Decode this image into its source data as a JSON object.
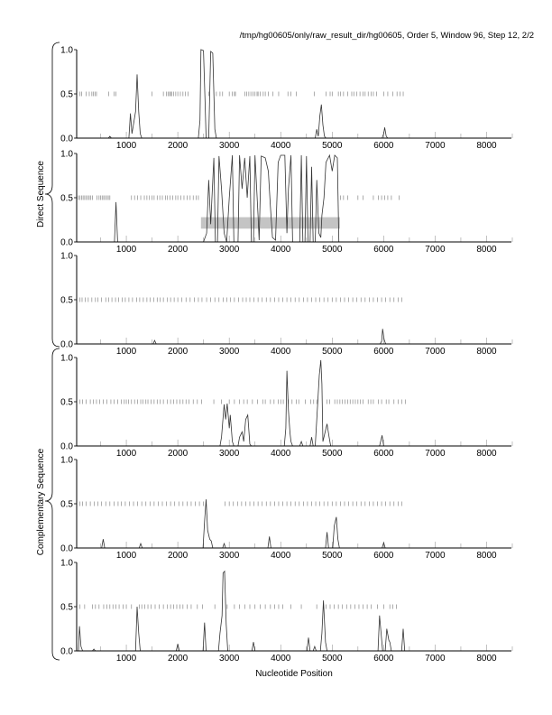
{
  "title": "/tmp/hg00605/only/raw_result_dir/hg00605, Order 5, Window 96, Step 12, 2/2",
  "group_labels": [
    "Direct Sequence",
    "Complementary Sequence"
  ],
  "chart_data": {
    "type": "line",
    "xlabel": "Nucleotide Position",
    "xlim": [
      0,
      8500
    ],
    "ylim": [
      0,
      1
    ],
    "x_ticks": [
      1000,
      2000,
      3000,
      4000,
      5000,
      6000,
      7000,
      8000
    ],
    "y_ticks": [
      "0.0",
      "0.5",
      "1.0"
    ],
    "line_color": "#333333",
    "mark_color": "#888888",
    "box_color": "#c4c4c4",
    "panels": [
      {
        "group": "Direct Sequence",
        "points": [
          [
            680,
            0.02
          ],
          [
            1080,
            0.28
          ],
          [
            1110,
            0.05
          ],
          [
            1180,
            0.3
          ],
          [
            1210,
            0.72
          ],
          [
            1240,
            0.3
          ],
          [
            1270,
            0.05
          ],
          [
            2430,
            0.2
          ],
          [
            2450,
            1.0
          ],
          [
            2500,
            0.99
          ],
          [
            2530,
            0.4
          ],
          [
            2550,
            0.0
          ],
          [
            2600,
            0.0
          ],
          [
            2640,
            0.98
          ],
          [
            2680,
            0.96
          ],
          [
            2720,
            0.1
          ],
          [
            4700,
            0.1
          ],
          [
            4730,
            0.02
          ],
          [
            4760,
            0.25
          ],
          [
            4790,
            0.38
          ],
          [
            4820,
            0.15
          ],
          [
            4850,
            0.02
          ],
          [
            6000,
            0.05
          ],
          [
            6020,
            0.12
          ],
          [
            6050,
            0.02
          ]
        ],
        "marks": [
          100,
          130,
          220,
          280,
          330,
          360,
          390,
          420,
          660,
          760,
          800,
          1500,
          1720,
          1780,
          1810,
          1840,
          1860,
          1880,
          1920,
          1960,
          2000,
          2050,
          2100,
          2150,
          2200,
          2600,
          2750,
          2820,
          2870,
          3000,
          3060,
          3100,
          3120,
          3300,
          3340,
          3380,
          3420,
          3460,
          3500,
          3540,
          3560,
          3600,
          3660,
          3700,
          3760,
          3850,
          3960,
          4140,
          4200,
          4300,
          4650,
          4880,
          4960,
          5000,
          5120,
          5160,
          5220,
          5300,
          5380,
          5420,
          5480,
          5540,
          5600,
          5640,
          5700,
          5760,
          5800,
          5860,
          6000,
          6080,
          6180,
          6260,
          6320,
          6380
        ]
      },
      {
        "group": "Direct Sequence",
        "points": [
          [
            770,
            0.0
          ],
          [
            800,
            0.45
          ],
          [
            830,
            0.0
          ],
          [
            2500,
            0.0
          ],
          [
            2560,
            0.1
          ],
          [
            2600,
            0.7
          ],
          [
            2640,
            0.2
          ],
          [
            2700,
            0.95
          ],
          [
            2800,
            0.97
          ],
          [
            2850,
            0.6
          ],
          [
            2900,
            0.1
          ],
          [
            2950,
            0.0
          ],
          [
            3000,
            0.5
          ],
          [
            3060,
            0.98
          ],
          [
            3200,
            0.98
          ],
          [
            3250,
            0.6
          ],
          [
            3300,
            0.95
          ],
          [
            3350,
            0.5
          ],
          [
            3400,
            0.97
          ],
          [
            3500,
            0.98
          ],
          [
            3560,
            0.3
          ],
          [
            3580,
            0.02
          ],
          [
            3620,
            0.97
          ],
          [
            3700,
            0.95
          ],
          [
            3760,
            0.8
          ],
          [
            3800,
            0.4
          ],
          [
            3840,
            0.05
          ],
          [
            3900,
            0.02
          ],
          [
            3950,
            0.9
          ],
          [
            4000,
            0.98
          ],
          [
            4080,
            0.98
          ],
          [
            4120,
            0.1
          ],
          [
            4150,
            0.6
          ],
          [
            4200,
            0.98
          ],
          [
            4400,
            0.98
          ],
          [
            4500,
            0.97
          ],
          [
            4600,
            0.85
          ],
          [
            4700,
            0.7
          ],
          [
            4740,
            0.1
          ],
          [
            4780,
            0.05
          ],
          [
            4800,
            0.3
          ],
          [
            4840,
            0.5
          ],
          [
            4880,
            0.9
          ],
          [
            4950,
            0.98
          ],
          [
            5000,
            0.8
          ],
          [
            5050,
            0.98
          ],
          [
            5100,
            0.95
          ],
          [
            5130,
            0.0
          ]
        ],
        "marks": [
          70,
          100,
          130,
          160,
          190,
          220,
          250,
          280,
          310,
          340,
          430,
          470,
          500,
          530,
          560,
          590,
          620,
          650,
          680,
          1100,
          1160,
          1220,
          1280,
          1350,
          1400,
          1450,
          1500,
          1540,
          1600,
          1650,
          1700,
          1760,
          1800,
          1850,
          1900,
          1960,
          2000,
          2060,
          2120,
          2180,
          2240,
          2300,
          2360,
          2400,
          5160,
          5220,
          5300,
          5500,
          5600,
          5800,
          5900,
          5960,
          6020,
          6080,
          6150,
          6300
        ],
        "highlight_box": {
          "x": [
            2450,
            5150
          ],
          "y": [
            0.15,
            0.28
          ]
        }
      },
      {
        "group": "Direct Sequence",
        "points": [
          [
            1550,
            0.04
          ],
          [
            5960,
            0.03
          ],
          [
            5980,
            0.17
          ],
          [
            6010,
            0.05
          ]
        ],
        "marks": [
          100,
          140,
          200,
          260,
          330,
          400,
          450,
          520,
          600,
          660,
          720,
          790,
          850,
          920,
          980,
          1050,
          1120,
          1200,
          1260,
          1330,
          1400,
          1460,
          1530,
          1600,
          1660,
          1720,
          1800,
          1860,
          1930,
          2000,
          2080,
          2160,
          2240,
          2320,
          2400,
          2470,
          2560,
          2640,
          2720,
          2800,
          2880,
          2950,
          3020,
          3100,
          3180,
          3260,
          3330,
          3400,
          3480,
          3560,
          3640,
          3720,
          3800,
          3880,
          3960,
          4040,
          4120,
          4200,
          4280,
          4360,
          4440,
          4520,
          4600,
          4680,
          4760,
          4840,
          4920,
          5000,
          5080,
          5160,
          5240,
          5320,
          5400,
          5480,
          5560,
          5640,
          5720,
          5800,
          5880,
          5960,
          6040,
          6120,
          6200,
          6280,
          6350
        ]
      },
      {
        "group": "Complementary Sequence",
        "points": [
          [
            2850,
            0.1
          ],
          [
            2900,
            0.47
          ],
          [
            2930,
            0.3
          ],
          [
            2960,
            0.48
          ],
          [
            3000,
            0.2
          ],
          [
            3020,
            0.35
          ],
          [
            3060,
            0.05
          ],
          [
            3200,
            0.1
          ],
          [
            3250,
            0.16
          ],
          [
            3280,
            0.05
          ],
          [
            3320,
            0.3
          ],
          [
            3360,
            0.35
          ],
          [
            3400,
            0.02
          ],
          [
            4100,
            0.2
          ],
          [
            4120,
            0.85
          ],
          [
            4150,
            0.4
          ],
          [
            4180,
            0.15
          ],
          [
            4200,
            0.05
          ],
          [
            4400,
            0.05
          ],
          [
            4600,
            0.1
          ],
          [
            4700,
            0.3
          ],
          [
            4750,
            0.8
          ],
          [
            4780,
            0.97
          ],
          [
            4800,
            0.7
          ],
          [
            4820,
            0.05
          ],
          [
            4900,
            0.25
          ],
          [
            4940,
            0.1
          ],
          [
            5950,
            0.07
          ],
          [
            5970,
            0.12
          ]
        ],
        "marks": [
          100,
          150,
          220,
          300,
          360,
          420,
          480,
          550,
          620,
          700,
          760,
          830,
          900,
          960,
          1000,
          1040,
          1100,
          1160,
          1220,
          1280,
          1320,
          1380,
          1420,
          1480,
          1540,
          1600,
          1660,
          1720,
          1800,
          1860,
          1920,
          1980,
          2040,
          2100,
          2160,
          2220,
          2300,
          2380,
          2460,
          2700,
          2850,
          3000,
          3100,
          3200,
          3280,
          3350,
          3450,
          3550,
          3650,
          3700,
          3800,
          3870,
          3950,
          4000,
          4050,
          4150,
          4220,
          4300,
          4350,
          4480,
          4580,
          4640,
          4700,
          4900,
          4950,
          5050,
          5100,
          5150,
          5200,
          5250,
          5300,
          5350,
          5400,
          5450,
          5500,
          5550,
          5600,
          5700,
          5750,
          5800,
          5900,
          5960,
          6050,
          6100,
          6200,
          6280,
          6350,
          6420
        ]
      },
      {
        "group": "Complementary Sequence",
        "points": [
          [
            550,
            0.1
          ],
          [
            1280,
            0.05
          ],
          [
            2520,
            0.3
          ],
          [
            2550,
            0.55
          ],
          [
            2580,
            0.2
          ],
          [
            2620,
            0.1
          ],
          [
            2650,
            0.08
          ],
          [
            2900,
            0.05
          ],
          [
            3780,
            0.13
          ],
          [
            4900,
            0.18
          ],
          [
            5040,
            0.25
          ],
          [
            5080,
            0.35
          ],
          [
            5110,
            0.1
          ],
          [
            6000,
            0.06
          ]
        ],
        "marks": [
          100,
          150,
          220,
          300,
          380,
          450,
          520,
          600,
          680,
          760,
          840,
          900,
          980,
          1060,
          1140,
          1220,
          1300,
          1380,
          1460,
          1540,
          1620,
          1700,
          1780,
          1860,
          1940,
          2020,
          2100,
          2180,
          2260,
          2340,
          2420,
          2500,
          2920,
          3000,
          3080,
          3160,
          3240,
          3320,
          3400,
          3480,
          3560,
          3640,
          3720,
          3800,
          3880,
          3960,
          4040,
          4120,
          4200,
          4280,
          4360,
          4440,
          4520,
          4600,
          4680,
          4760,
          4840,
          4920,
          5000,
          5080,
          5160,
          5240,
          5320,
          5400,
          5480,
          5560,
          5640,
          5720,
          5800,
          5880,
          5960,
          6040,
          6120,
          6200,
          6280,
          6350
        ]
      },
      {
        "group": "Complementary Sequence",
        "points": [
          [
            70,
            0.0
          ],
          [
            90,
            0.28
          ],
          [
            120,
            0.05
          ],
          [
            370,
            0.02
          ],
          [
            1210,
            0.5
          ],
          [
            1240,
            0.2
          ],
          [
            2000,
            0.08
          ],
          [
            2520,
            0.32
          ],
          [
            2820,
            0.2
          ],
          [
            2860,
            0.4
          ],
          [
            2880,
            0.88
          ],
          [
            2910,
            0.9
          ],
          [
            2940,
            0.3
          ],
          [
            3470,
            0.1
          ],
          [
            4540,
            0.15
          ],
          [
            4660,
            0.05
          ],
          [
            4800,
            0.2
          ],
          [
            4830,
            0.57
          ],
          [
            4870,
            0.1
          ],
          [
            5920,
            0.4
          ],
          [
            5950,
            0.2
          ],
          [
            6060,
            0.25
          ],
          [
            6100,
            0.12
          ],
          [
            6120,
            0.1
          ],
          [
            6380,
            0.25
          ]
        ],
        "marks": [
          100,
          190,
          340,
          400,
          470,
          560,
          620,
          680,
          740,
          800,
          860,
          940,
          1000,
          1100,
          1250,
          1300,
          1360,
          1420,
          1480,
          1560,
          1640,
          1720,
          1800,
          1860,
          1920,
          1980,
          2040,
          2100,
          2180,
          2260,
          2380,
          2480,
          2720,
          2960,
          3100,
          3200,
          3300,
          3400,
          3500,
          3600,
          3700,
          3800,
          3880,
          3960,
          4040,
          4200,
          4400,
          4700,
          4880,
          4960,
          5040,
          5120,
          5200,
          5280,
          5360,
          5440,
          5520,
          5600,
          5680,
          5760,
          5880,
          6000,
          6120,
          6180,
          6250
        ]
      }
    ]
  }
}
